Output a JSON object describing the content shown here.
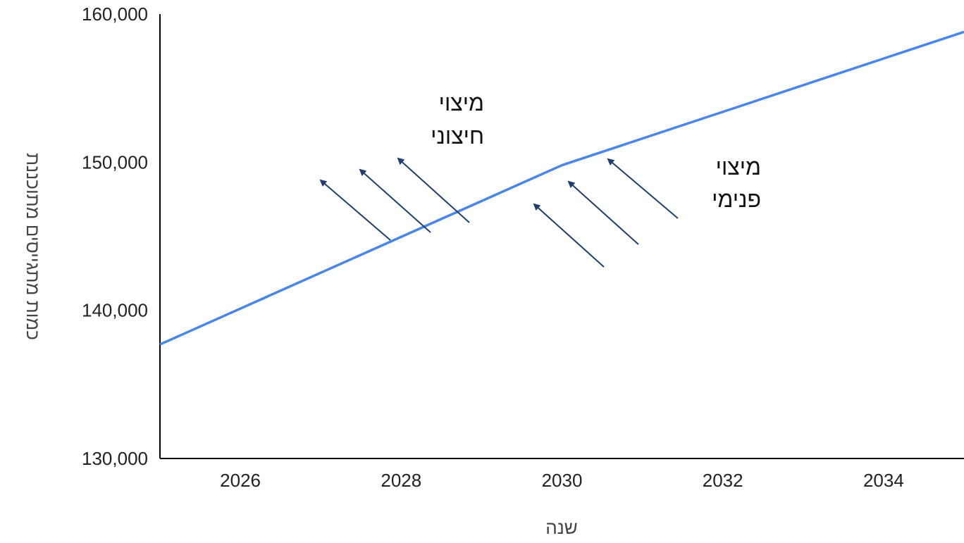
{
  "chart_data": {
    "type": "line",
    "title": "",
    "xlabel": "שנה",
    "ylabel": "כמות מתגייסים מתוכננת",
    "xlim": [
      2025,
      2035
    ],
    "ylim": [
      130000,
      160000
    ],
    "x_ticks": [
      2026,
      2028,
      2030,
      2032,
      2034
    ],
    "y_ticks": [
      130000,
      140000,
      150000,
      160000
    ],
    "x_tick_labels": [
      "2026",
      "2028",
      "2030",
      "2032",
      "2034"
    ],
    "y_tick_labels": [
      "130,000",
      "140,000",
      "150,000",
      "160,000"
    ],
    "grid": false,
    "legend": "none",
    "line_color": "#4a86e8",
    "arrow_color": "#1f3f6e",
    "series": [
      {
        "x": [
          2025,
          2030,
          2035
        ],
        "y": [
          137700,
          149800,
          158800
        ]
      }
    ],
    "annotations": [
      {
        "lines": [
          "מיצוי",
          "חיצוני"
        ]
      },
      {
        "lines": [
          "מיצוי",
          "פנימי"
        ]
      }
    ]
  }
}
